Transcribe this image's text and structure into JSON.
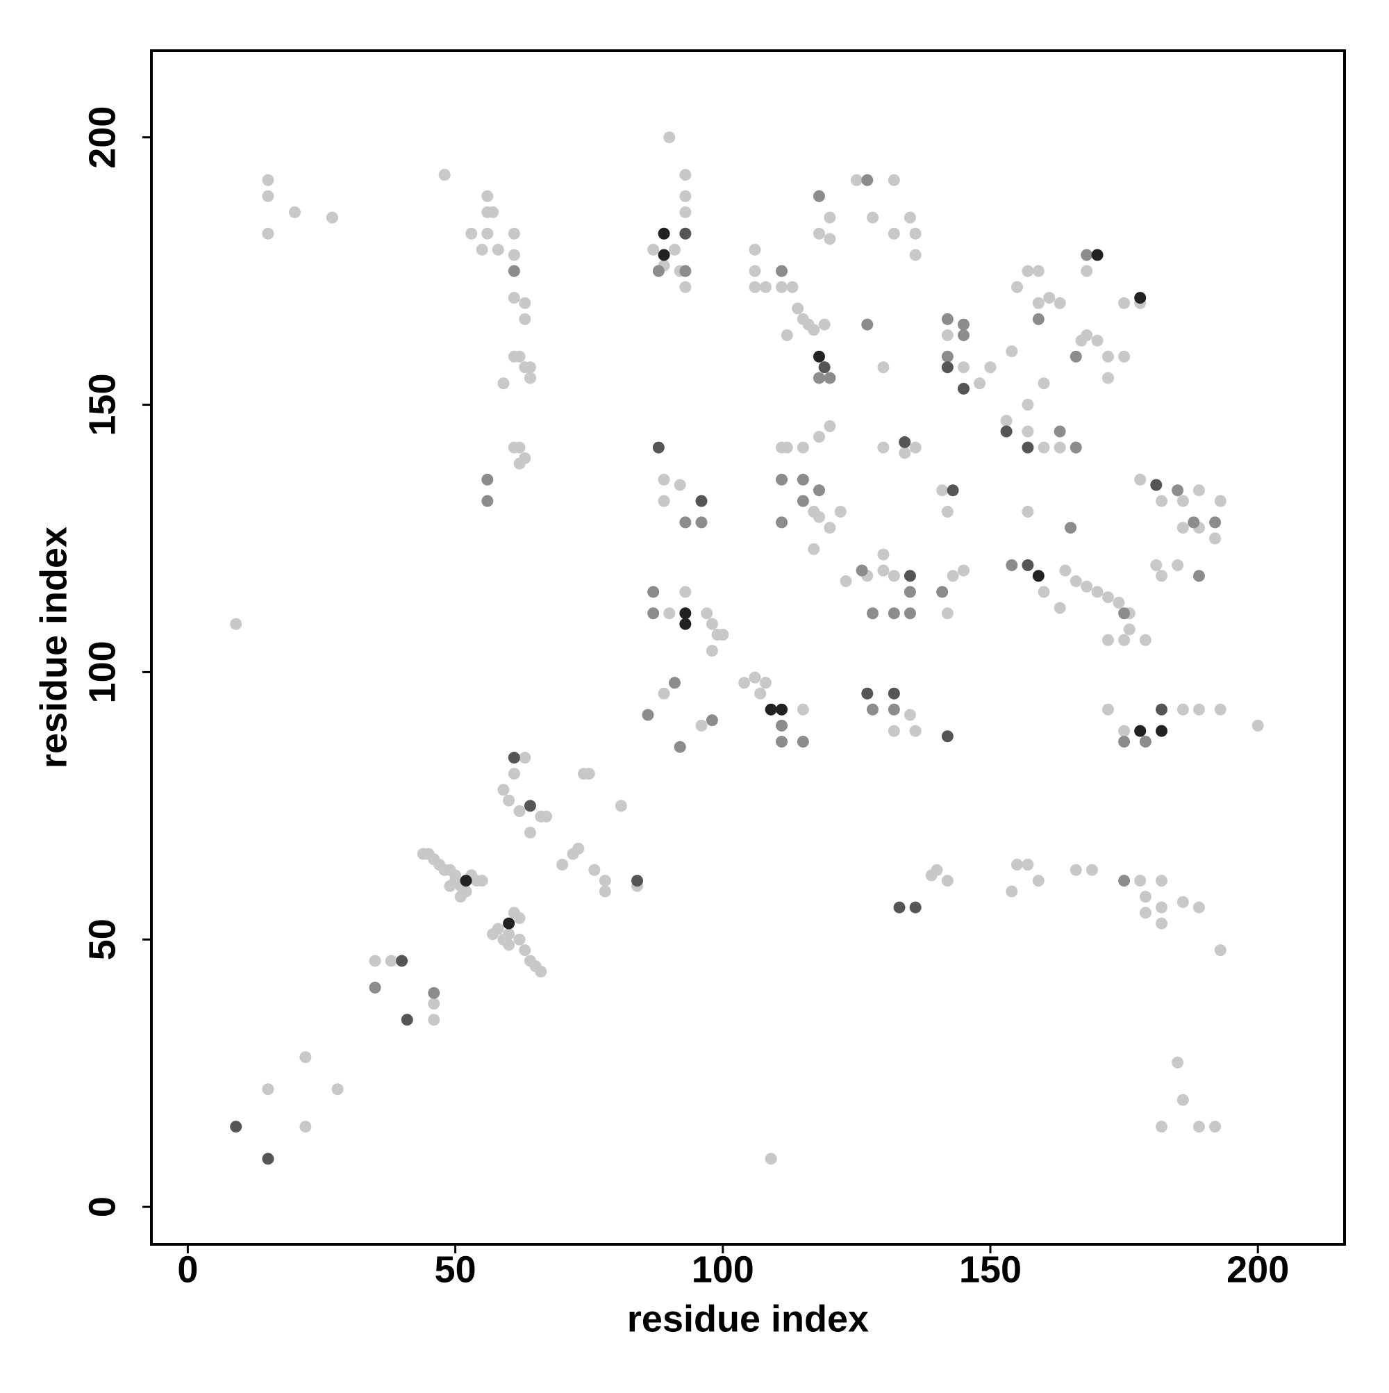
{
  "chart_data": {
    "type": "scatter",
    "x_label": "residue index",
    "y_label": "residue index",
    "xlim": [
      -6.8,
      216.2
    ],
    "ylim": [
      -7,
      216.2
    ],
    "xticks": [
      0,
      50,
      100,
      150,
      200
    ],
    "yticks": [
      0,
      50,
      100,
      150,
      200
    ],
    "grid": false,
    "series": [
      {
        "color": "#c8c8c8",
        "x": [
          15,
          15,
          15,
          20,
          27,
          9,
          48,
          56,
          56,
          57,
          53,
          56,
          55,
          58,
          61,
          61,
          61,
          63,
          63,
          61,
          62,
          63,
          64,
          64,
          59,
          61,
          62,
          62,
          63,
          44,
          45,
          46,
          47,
          48,
          49,
          50,
          50,
          51,
          52,
          53,
          54,
          55,
          49,
          51,
          57,
          58,
          59,
          60,
          61,
          62,
          62,
          63,
          64,
          65,
          66,
          60,
          59,
          60,
          62,
          66,
          64,
          67,
          74,
          75,
          81,
          70,
          72,
          73,
          76,
          78,
          78,
          84,
          63,
          61,
          35,
          38,
          46,
          46,
          15,
          22,
          22,
          28,
          109,
          90,
          93,
          93,
          93,
          87,
          91,
          89,
          92,
          93,
          106,
          106,
          106,
          108,
          111,
          113,
          114,
          115,
          116,
          117,
          119,
          112,
          118,
          120,
          120,
          118,
          120,
          115,
          111,
          112,
          125,
          128,
          132,
          132,
          135,
          136,
          136,
          130,
          130,
          134,
          136,
          89,
          89,
          92,
          93,
          90,
          89,
          97,
          98,
          99,
          100,
          98,
          96,
          104,
          106,
          107,
          108,
          115,
          117,
          118,
          117,
          120,
          122,
          123,
          127,
          130,
          130,
          132,
          132,
          136,
          135,
          141,
          142,
          143,
          145,
          142,
          142,
          145,
          148,
          150,
          154,
          155,
          157,
          159,
          159,
          161,
          163,
          160,
          153,
          157,
          157,
          160,
          163,
          157,
          160,
          164,
          166,
          168,
          170,
          172,
          174,
          176,
          176,
          172,
          175,
          179,
          163,
          168,
          170,
          167,
          172,
          172,
          175,
          175,
          178,
          168,
          172,
          175,
          178,
          186,
          189,
          193,
          200,
          181,
          182,
          185,
          178,
          182,
          186,
          186,
          189,
          192,
          193,
          189,
          139,
          140,
          142,
          154,
          155,
          157,
          159,
          166,
          169,
          178,
          182,
          179,
          179,
          182,
          186,
          189,
          182,
          193,
          185,
          186,
          182,
          189,
          192
        ],
        "values": [
          192,
          189,
          182,
          186,
          185,
          109,
          193,
          189,
          186,
          186,
          182,
          182,
          179,
          179,
          182,
          178,
          170,
          169,
          166,
          159,
          159,
          157,
          157,
          155,
          154,
          142,
          142,
          139,
          140,
          66,
          66,
          65,
          64,
          63,
          63,
          62,
          61,
          60,
          59,
          62,
          61,
          61,
          60,
          58,
          51,
          52,
          50,
          49,
          55,
          54,
          50,
          48,
          46,
          45,
          44,
          51,
          78,
          76,
          74,
          73,
          70,
          73,
          81,
          81,
          75,
          64,
          66,
          67,
          63,
          59,
          61,
          60,
          84,
          81,
          46,
          46,
          38,
          35,
          22,
          28,
          15,
          22,
          9,
          200,
          193,
          189,
          186,
          179,
          179,
          176,
          175,
          172,
          179,
          175,
          172,
          172,
          172,
          172,
          168,
          166,
          165,
          164,
          165,
          163,
          182,
          181,
          185,
          144,
          146,
          142,
          142,
          142,
          192,
          185,
          192,
          182,
          185,
          182,
          178,
          157,
          142,
          141,
          142,
          136,
          132,
          135,
          115,
          111,
          96,
          111,
          109,
          107,
          107,
          104,
          90,
          98,
          99,
          96,
          98,
          93,
          123,
          129,
          130,
          127,
          130,
          117,
          118,
          122,
          119,
          118,
          89,
          89,
          92,
          134,
          130,
          118,
          119,
          111,
          163,
          157,
          154,
          157,
          160,
          172,
          175,
          175,
          169,
          170,
          169,
          154,
          147,
          150,
          145,
          142,
          142,
          130,
          115,
          119,
          117,
          116,
          115,
          114,
          113,
          111,
          108,
          106,
          106,
          106,
          112,
          163,
          162,
          162,
          159,
          155,
          159,
          169,
          169,
          175,
          93,
          89,
          89,
          93,
          93,
          93,
          90,
          120,
          118,
          120,
          136,
          132,
          132,
          127,
          127,
          125,
          132,
          134,
          62,
          63,
          61,
          59,
          64,
          64,
          61,
          63,
          63,
          61,
          61,
          58,
          55,
          56,
          57,
          56,
          53,
          48,
          27,
          20,
          15,
          15,
          15
        ]
      },
      {
        "color": "#8c8c8c",
        "x": [
          56,
          56,
          61,
          35,
          46,
          87,
          87,
          86,
          91,
          92,
          93,
          96,
          98,
          88,
          93,
          111,
          111,
          111,
          111,
          111,
          115,
          115,
          115,
          118,
          118,
          118,
          120,
          127,
          128,
          128,
          132,
          126,
          127,
          135,
          135,
          132,
          141,
          142,
          142,
          145,
          145,
          165,
          163,
          166,
          168,
          159,
          175,
          175,
          179,
          189,
          188,
          192,
          185,
          175,
          166,
          154
        ],
        "values": [
          136,
          132,
          175,
          41,
          40,
          115,
          111,
          92,
          98,
          86,
          128,
          128,
          91,
          175,
          175,
          175,
          128,
          136,
          90,
          87,
          87,
          136,
          132,
          134,
          189,
          155,
          155,
          165,
          111,
          93,
          93,
          119,
          192,
          115,
          111,
          111,
          115,
          166,
          159,
          165,
          163,
          127,
          145,
          142,
          178,
          166,
          111,
          87,
          87,
          118,
          128,
          128,
          134,
          61,
          159,
          120
        ]
      },
      {
        "color": "#555555",
        "x": [
          9,
          15,
          41,
          40,
          88,
          93,
          96,
          134,
          142,
          135,
          127,
          132,
          143,
          145,
          153,
          157,
          157,
          181,
          182,
          142,
          133,
          136,
          61,
          84,
          64,
          119
        ],
        "values": [
          15,
          9,
          35,
          46,
          142,
          182,
          132,
          143,
          88,
          118,
          96,
          96,
          134,
          153,
          145,
          142,
          120,
          135,
          93,
          157,
          56,
          56,
          84,
          61,
          75,
          157
        ]
      },
      {
        "color": "#222222",
        "x": [
          89,
          89,
          93,
          93,
          109,
          111,
          118,
          159,
          170,
          178,
          182,
          178,
          60,
          52
        ],
        "values": [
          182,
          178,
          111,
          109,
          93,
          93,
          159,
          118,
          178,
          170,
          89,
          89,
          53,
          61
        ]
      }
    ]
  }
}
